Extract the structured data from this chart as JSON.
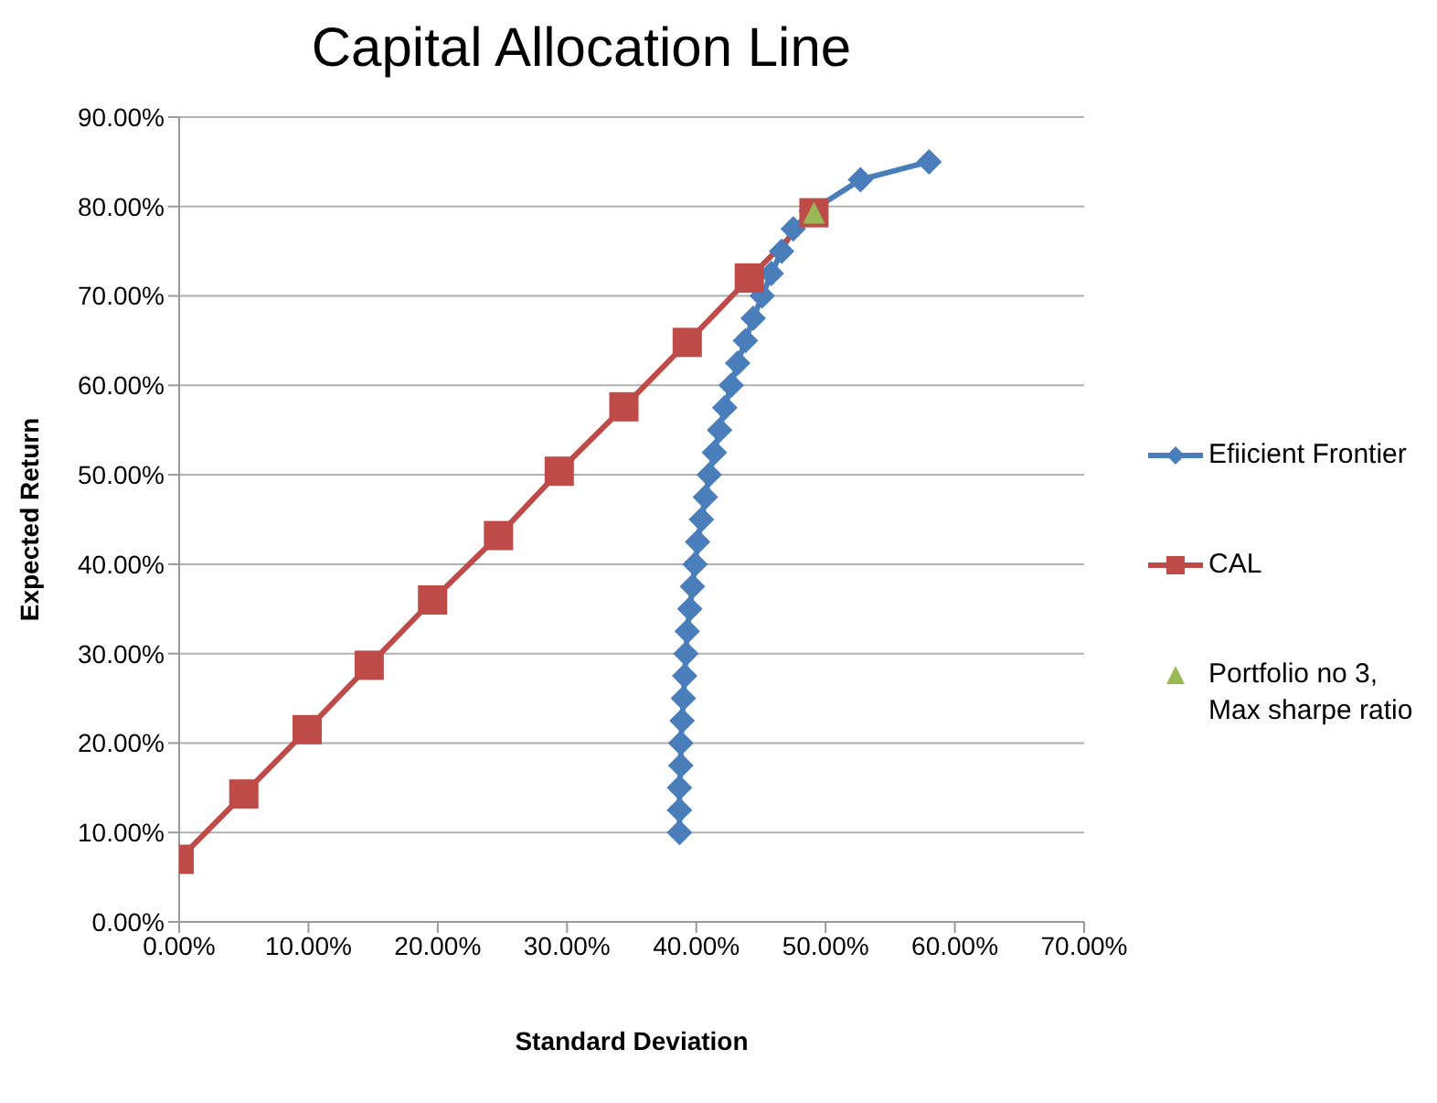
{
  "chart_data": {
    "type": "line",
    "title": "Capital Allocation Line",
    "xlabel": "Standard Deviation",
    "ylabel": "Expected Return",
    "xlim": [
      0,
      70
    ],
    "xticks": [
      {
        "value": 0,
        "label": "0.00%"
      },
      {
        "value": 10,
        "label": "10.00%"
      },
      {
        "value": 20,
        "label": "20.00%"
      },
      {
        "value": 30,
        "label": "30.00%"
      },
      {
        "value": 40,
        "label": "40.00%"
      },
      {
        "value": 50,
        "label": "50.00%"
      },
      {
        "value": 60,
        "label": "60.00%"
      },
      {
        "value": 70,
        "label": "70.00%"
      }
    ],
    "ylim": [
      0,
      90
    ],
    "yticks": [
      {
        "value": 0,
        "label": "0.00%"
      },
      {
        "value": 10,
        "label": "10.00%"
      },
      {
        "value": 20,
        "label": "20.00%"
      },
      {
        "value": 30,
        "label": "30.00%"
      },
      {
        "value": 40,
        "label": "40.00%"
      },
      {
        "value": 50,
        "label": "50.00%"
      },
      {
        "value": 60,
        "label": "60.00%"
      },
      {
        "value": 70,
        "label": "70.00%"
      },
      {
        "value": 80,
        "label": "80.00%"
      },
      {
        "value": 90,
        "label": "90.00%"
      }
    ],
    "grid": "y",
    "legend": "right",
    "series": [
      {
        "name": "Efiicient Frontier",
        "marker": "diamond",
        "color": "#4a7ebb",
        "x": [
          38.7,
          38.7,
          38.7,
          38.8,
          38.8,
          38.9,
          39.0,
          39.1,
          39.2,
          39.3,
          39.5,
          39.7,
          39.9,
          40.1,
          40.4,
          40.7,
          41.0,
          41.4,
          41.8,
          42.2,
          42.7,
          43.2,
          43.8,
          44.4,
          45.1,
          45.8,
          46.6,
          47.5,
          48.9,
          52.7,
          58.0
        ],
        "values": [
          10,
          12.5,
          15,
          17.5,
          20,
          22.5,
          25,
          27.5,
          30,
          32.5,
          35,
          37.5,
          40,
          42.5,
          45,
          47.5,
          50,
          52.5,
          55,
          57.5,
          60,
          62.5,
          65,
          67.5,
          70,
          72.5,
          75,
          77.5,
          79.5,
          83,
          85
        ]
      },
      {
        "name": "CAL",
        "marker": "square",
        "color": "#be4b48",
        "x": [
          0,
          5.0,
          9.9,
          14.7,
          19.6,
          24.7,
          29.4,
          34.4,
          39.3,
          44.1,
          49.1
        ],
        "values": [
          7,
          14.3,
          21.5,
          28.7,
          36,
          43.2,
          50.4,
          57.6,
          64.8,
          72,
          79.3
        ]
      },
      {
        "name": "Portfolio no 3, Max sharpe ratio",
        "type": "scatter",
        "marker": "triangle",
        "color": "#98b954",
        "x": [
          49.1
        ],
        "values": [
          79.3
        ]
      }
    ]
  }
}
